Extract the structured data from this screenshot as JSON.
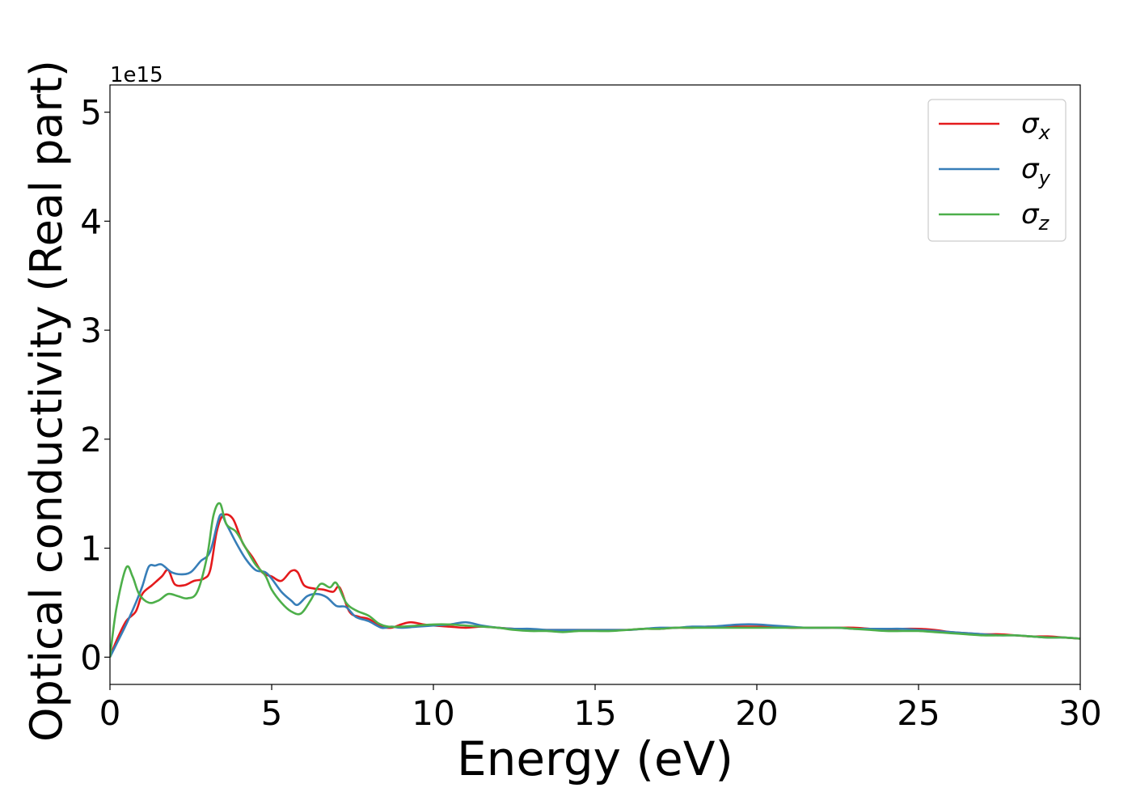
{
  "chart_data": {
    "type": "line",
    "title": "",
    "xlabel": "Energy (eV)",
    "ylabel": "Optical conductivity (Real part)",
    "y_offset_text": "1e15",
    "xlim": [
      0,
      30
    ],
    "ylim": [
      -0.25,
      5.25
    ],
    "xticks": [
      0,
      5,
      10,
      15,
      20,
      25,
      30
    ],
    "yticks": [
      0,
      1,
      2,
      3,
      4,
      5
    ],
    "grid": false,
    "legend_position": "top-right",
    "series": [
      {
        "name": "σ",
        "name_sub": "x",
        "color": "#e41a1c",
        "points": [
          [
            0,
            0
          ],
          [
            0.2,
            0.15
          ],
          [
            0.5,
            0.33
          ],
          [
            0.8,
            0.42
          ],
          [
            1.0,
            0.58
          ],
          [
            1.3,
            0.66
          ],
          [
            1.6,
            0.74
          ],
          [
            1.8,
            0.8
          ],
          [
            2.0,
            0.67
          ],
          [
            2.3,
            0.66
          ],
          [
            2.6,
            0.7
          ],
          [
            2.9,
            0.72
          ],
          [
            3.1,
            0.8
          ],
          [
            3.3,
            1.15
          ],
          [
            3.5,
            1.3
          ],
          [
            3.8,
            1.27
          ],
          [
            4.1,
            1.05
          ],
          [
            4.4,
            0.92
          ],
          [
            4.7,
            0.78
          ],
          [
            5.0,
            0.74
          ],
          [
            5.3,
            0.7
          ],
          [
            5.6,
            0.79
          ],
          [
            5.8,
            0.78
          ],
          [
            6.0,
            0.66
          ],
          [
            6.3,
            0.63
          ],
          [
            6.6,
            0.62
          ],
          [
            6.9,
            0.6
          ],
          [
            7.1,
            0.64
          ],
          [
            7.4,
            0.42
          ],
          [
            7.7,
            0.37
          ],
          [
            8.0,
            0.35
          ],
          [
            8.4,
            0.28
          ],
          [
            8.7,
            0.27
          ],
          [
            9.0,
            0.3
          ],
          [
            9.3,
            0.32
          ],
          [
            9.7,
            0.3
          ],
          [
            10.0,
            0.29
          ],
          [
            10.5,
            0.28
          ],
          [
            11.0,
            0.27
          ],
          [
            11.5,
            0.28
          ],
          [
            12.0,
            0.27
          ],
          [
            12.5,
            0.26
          ],
          [
            13.0,
            0.25
          ],
          [
            13.5,
            0.25
          ],
          [
            14.0,
            0.25
          ],
          [
            14.5,
            0.25
          ],
          [
            15.0,
            0.25
          ],
          [
            15.5,
            0.25
          ],
          [
            16.0,
            0.25
          ],
          [
            16.5,
            0.26
          ],
          [
            17.0,
            0.26
          ],
          [
            17.5,
            0.27
          ],
          [
            18.0,
            0.27
          ],
          [
            18.5,
            0.28
          ],
          [
            19.0,
            0.28
          ],
          [
            19.5,
            0.28
          ],
          [
            20.0,
            0.28
          ],
          [
            20.5,
            0.28
          ],
          [
            21.0,
            0.27
          ],
          [
            21.5,
            0.27
          ],
          [
            22.0,
            0.27
          ],
          [
            22.5,
            0.27
          ],
          [
            23.0,
            0.27
          ],
          [
            23.5,
            0.26
          ],
          [
            24.0,
            0.25
          ],
          [
            24.5,
            0.26
          ],
          [
            25.0,
            0.26
          ],
          [
            25.5,
            0.25
          ],
          [
            26.0,
            0.23
          ],
          [
            26.5,
            0.22
          ],
          [
            27.0,
            0.21
          ],
          [
            27.5,
            0.21
          ],
          [
            28.0,
            0.2
          ],
          [
            28.5,
            0.19
          ],
          [
            29.0,
            0.19
          ],
          [
            29.5,
            0.18
          ],
          [
            30.0,
            0.17
          ]
        ]
      },
      {
        "name": "σ",
        "name_sub": "y",
        "color": "#377eb8",
        "points": [
          [
            0,
            0
          ],
          [
            0.2,
            0.12
          ],
          [
            0.5,
            0.3
          ],
          [
            0.8,
            0.5
          ],
          [
            1.0,
            0.65
          ],
          [
            1.2,
            0.83
          ],
          [
            1.4,
            0.84
          ],
          [
            1.6,
            0.85
          ],
          [
            1.9,
            0.78
          ],
          [
            2.2,
            0.76
          ],
          [
            2.5,
            0.78
          ],
          [
            2.8,
            0.88
          ],
          [
            3.1,
            0.97
          ],
          [
            3.4,
            1.3
          ],
          [
            3.6,
            1.22
          ],
          [
            3.9,
            1.05
          ],
          [
            4.2,
            0.9
          ],
          [
            4.5,
            0.8
          ],
          [
            4.8,
            0.78
          ],
          [
            5.0,
            0.72
          ],
          [
            5.3,
            0.6
          ],
          [
            5.6,
            0.52
          ],
          [
            5.8,
            0.48
          ],
          [
            6.1,
            0.56
          ],
          [
            6.4,
            0.58
          ],
          [
            6.7,
            0.55
          ],
          [
            7.0,
            0.47
          ],
          [
            7.3,
            0.46
          ],
          [
            7.6,
            0.37
          ],
          [
            8.0,
            0.33
          ],
          [
            8.4,
            0.27
          ],
          [
            8.7,
            0.28
          ],
          [
            9.0,
            0.27
          ],
          [
            9.5,
            0.28
          ],
          [
            10.0,
            0.29
          ],
          [
            10.5,
            0.3
          ],
          [
            11.0,
            0.32
          ],
          [
            11.5,
            0.29
          ],
          [
            12.0,
            0.27
          ],
          [
            12.5,
            0.26
          ],
          [
            13.0,
            0.26
          ],
          [
            13.5,
            0.25
          ],
          [
            14.0,
            0.25
          ],
          [
            14.5,
            0.25
          ],
          [
            15.0,
            0.25
          ],
          [
            15.5,
            0.25
          ],
          [
            16.0,
            0.25
          ],
          [
            16.5,
            0.26
          ],
          [
            17.0,
            0.27
          ],
          [
            17.5,
            0.27
          ],
          [
            18.0,
            0.28
          ],
          [
            18.5,
            0.28
          ],
          [
            19.0,
            0.29
          ],
          [
            19.5,
            0.3
          ],
          [
            20.0,
            0.3
          ],
          [
            20.5,
            0.29
          ],
          [
            21.0,
            0.28
          ],
          [
            21.5,
            0.27
          ],
          [
            22.0,
            0.27
          ],
          [
            22.5,
            0.27
          ],
          [
            23.0,
            0.26
          ],
          [
            23.5,
            0.26
          ],
          [
            24.0,
            0.26
          ],
          [
            24.5,
            0.26
          ],
          [
            25.0,
            0.25
          ],
          [
            25.5,
            0.24
          ],
          [
            26.0,
            0.23
          ],
          [
            26.5,
            0.22
          ],
          [
            27.0,
            0.21
          ],
          [
            27.5,
            0.2
          ],
          [
            28.0,
            0.2
          ],
          [
            28.5,
            0.19
          ],
          [
            29.0,
            0.18
          ],
          [
            29.5,
            0.18
          ],
          [
            30.0,
            0.17
          ]
        ]
      },
      {
        "name": "σ",
        "name_sub": "z",
        "color": "#4daf4a",
        "points": [
          [
            0,
            0
          ],
          [
            0.2,
            0.45
          ],
          [
            0.5,
            0.82
          ],
          [
            0.7,
            0.74
          ],
          [
            0.9,
            0.58
          ],
          [
            1.2,
            0.5
          ],
          [
            1.5,
            0.52
          ],
          [
            1.8,
            0.58
          ],
          [
            2.1,
            0.56
          ],
          [
            2.4,
            0.54
          ],
          [
            2.7,
            0.6
          ],
          [
            3.0,
            0.92
          ],
          [
            3.2,
            1.3
          ],
          [
            3.4,
            1.41
          ],
          [
            3.6,
            1.22
          ],
          [
            3.9,
            1.15
          ],
          [
            4.2,
            1.0
          ],
          [
            4.5,
            0.85
          ],
          [
            4.8,
            0.75
          ],
          [
            5.0,
            0.62
          ],
          [
            5.3,
            0.5
          ],
          [
            5.6,
            0.42
          ],
          [
            5.9,
            0.4
          ],
          [
            6.2,
            0.52
          ],
          [
            6.5,
            0.67
          ],
          [
            6.8,
            0.64
          ],
          [
            7.0,
            0.68
          ],
          [
            7.3,
            0.5
          ],
          [
            7.6,
            0.43
          ],
          [
            8.0,
            0.38
          ],
          [
            8.3,
            0.31
          ],
          [
            8.6,
            0.28
          ],
          [
            9.0,
            0.28
          ],
          [
            9.5,
            0.29
          ],
          [
            10.0,
            0.3
          ],
          [
            10.5,
            0.3
          ],
          [
            11.0,
            0.29
          ],
          [
            11.5,
            0.28
          ],
          [
            12.0,
            0.27
          ],
          [
            12.5,
            0.25
          ],
          [
            13.0,
            0.24
          ],
          [
            13.5,
            0.24
          ],
          [
            14.0,
            0.23
          ],
          [
            14.5,
            0.24
          ],
          [
            15.0,
            0.24
          ],
          [
            15.5,
            0.24
          ],
          [
            16.0,
            0.25
          ],
          [
            16.5,
            0.26
          ],
          [
            17.0,
            0.26
          ],
          [
            17.5,
            0.27
          ],
          [
            18.0,
            0.27
          ],
          [
            18.5,
            0.27
          ],
          [
            19.0,
            0.27
          ],
          [
            19.5,
            0.27
          ],
          [
            20.0,
            0.27
          ],
          [
            20.5,
            0.27
          ],
          [
            21.0,
            0.27
          ],
          [
            21.5,
            0.27
          ],
          [
            22.0,
            0.27
          ],
          [
            22.5,
            0.27
          ],
          [
            23.0,
            0.26
          ],
          [
            23.5,
            0.25
          ],
          [
            24.0,
            0.24
          ],
          [
            24.5,
            0.24
          ],
          [
            25.0,
            0.24
          ],
          [
            25.5,
            0.23
          ],
          [
            26.0,
            0.22
          ],
          [
            26.5,
            0.21
          ],
          [
            27.0,
            0.2
          ],
          [
            27.5,
            0.2
          ],
          [
            28.0,
            0.2
          ],
          [
            28.5,
            0.19
          ],
          [
            29.0,
            0.18
          ],
          [
            29.5,
            0.18
          ],
          [
            30.0,
            0.17
          ]
        ]
      }
    ]
  }
}
